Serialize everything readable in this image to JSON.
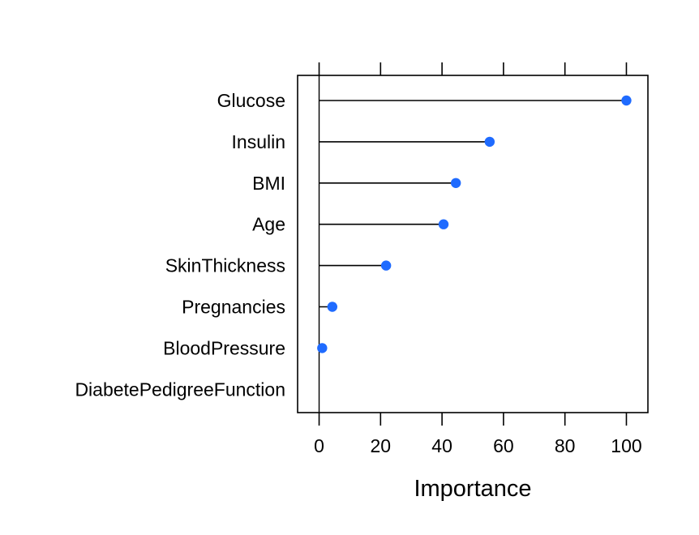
{
  "chart_data": {
    "type": "dot",
    "xlabel": "Importance",
    "xlim": [
      -7,
      107
    ],
    "xticks": [
      0,
      20,
      40,
      60,
      80,
      100
    ],
    "grid": false,
    "point_color": "#1F6BFF",
    "categories": [
      "Glucose",
      "Insulin",
      "BMI",
      "Age",
      "SkinThickness",
      "Pregnancies",
      "BloodPressure",
      "DiabetePedigreeFunction"
    ],
    "values": [
      100,
      55.5,
      44.5,
      40.5,
      21.8,
      4.3,
      1.0,
      0
    ]
  }
}
